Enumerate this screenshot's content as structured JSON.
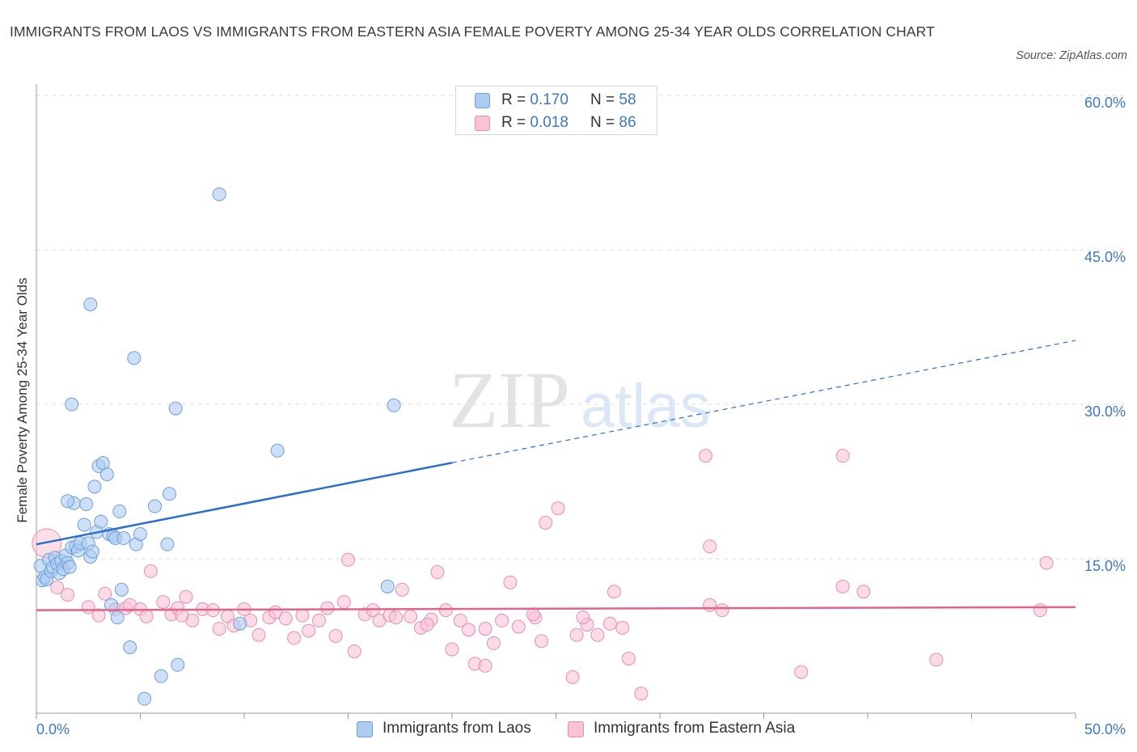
{
  "title": "IMMIGRANTS FROM LAOS VS IMMIGRANTS FROM EASTERN ASIA FEMALE POVERTY AMONG 25-34 YEAR OLDS CORRELATION CHART",
  "source": "Source: ZipAtlas.com",
  "watermark": {
    "zip": "ZIP",
    "atlas": "atlas"
  },
  "legend_top": {
    "rows": [
      {
        "r_label": "R = ",
        "r_value": "0.170",
        "n_label": "N = ",
        "n_value": "58",
        "color": "#aecbf2"
      },
      {
        "r_label": "R = ",
        "r_value": "0.018",
        "n_label": "N = ",
        "n_value": "86",
        "color": "#f9c3d3"
      }
    ]
  },
  "colors": {
    "laos_fill": "#aecbf2",
    "laos_stroke": "#6f9fd8",
    "laos_line": "#2a6fcf",
    "asia_fill": "#f9c3d3",
    "asia_stroke": "#ea8fab",
    "asia_line": "#e2648c",
    "tick_label": "#3b78c8",
    "grid": "#dcdcdc"
  },
  "chart_data": {
    "type": "scatter",
    "title": "IMMIGRANTS FROM LAOS VS IMMIGRANTS FROM EASTERN ASIA FEMALE POVERTY AMONG 25-34 YEAR OLDS CORRELATION CHART",
    "xlabel": "",
    "ylabel": "Female Poverty Among 25-34 Year Olds",
    "xlim": [
      0,
      50
    ],
    "ylim": [
      0,
      60
    ],
    "x_tick_labels": [
      "0.0%",
      "50.0%"
    ],
    "y_ticks": [
      15,
      30,
      45,
      60
    ],
    "y_tick_labels": [
      "15.0%",
      "30.0%",
      "45.0%",
      "60.0%"
    ],
    "grid": true,
    "legend_position": "bottom",
    "series": [
      {
        "name": "Immigrants from Laos",
        "trend": {
          "x0": 0,
          "y0": 16.4,
          "x_solid_end": 20.0,
          "x1": 50,
          "y1": 36.2
        },
        "points": [
          [
            0.2,
            14.3
          ],
          [
            0.3,
            12.9
          ],
          [
            0.4,
            13.2
          ],
          [
            0.5,
            13.0
          ],
          [
            0.6,
            14.9
          ],
          [
            0.7,
            13.8
          ],
          [
            0.8,
            14.2
          ],
          [
            0.9,
            15.1
          ],
          [
            1.0,
            14.5
          ],
          [
            1.1,
            13.6
          ],
          [
            1.2,
            14.8
          ],
          [
            1.3,
            14.0
          ],
          [
            1.4,
            15.3
          ],
          [
            1.5,
            14.6
          ],
          [
            1.6,
            14.2
          ],
          [
            1.7,
            16.1
          ],
          [
            1.8,
            20.4
          ],
          [
            1.9,
            16.2
          ],
          [
            2.0,
            15.8
          ],
          [
            2.1,
            16.5
          ],
          [
            2.3,
            18.3
          ],
          [
            2.4,
            20.3
          ],
          [
            2.5,
            16.5
          ],
          [
            2.6,
            15.2
          ],
          [
            2.7,
            15.7
          ],
          [
            2.8,
            22.0
          ],
          [
            2.9,
            17.6
          ],
          [
            3.0,
            24.0
          ],
          [
            3.1,
            18.6
          ],
          [
            3.2,
            24.3
          ],
          [
            3.4,
            23.2
          ],
          [
            3.5,
            17.4
          ],
          [
            3.6,
            10.5
          ],
          [
            3.7,
            17.2
          ],
          [
            3.8,
            17.0
          ],
          [
            3.9,
            9.3
          ],
          [
            4.0,
            19.6
          ],
          [
            4.1,
            12.0
          ],
          [
            4.2,
            17.0
          ],
          [
            4.5,
            6.4
          ],
          [
            4.8,
            16.4
          ],
          [
            5.0,
            17.4
          ],
          [
            5.2,
            1.4
          ],
          [
            5.7,
            20.1
          ],
          [
            6.0,
            3.6
          ],
          [
            6.4,
            21.3
          ],
          [
            6.8,
            4.7
          ],
          [
            1.5,
            20.6
          ],
          [
            2.6,
            39.7
          ],
          [
            4.7,
            34.5
          ],
          [
            1.7,
            30.0
          ],
          [
            6.7,
            29.6
          ],
          [
            8.8,
            50.4
          ],
          [
            11.6,
            25.5
          ],
          [
            17.2,
            29.9
          ],
          [
            6.3,
            16.4
          ],
          [
            16.9,
            12.3
          ],
          [
            9.8,
            8.7
          ]
        ]
      },
      {
        "name": "Immigrants from Eastern Asia",
        "trend": {
          "x0": 0,
          "y0": 10.0,
          "x1": 50,
          "y1": 10.3
        },
        "points": [
          [
            0.5,
            16.5
          ],
          [
            1.0,
            12.2
          ],
          [
            1.5,
            11.5
          ],
          [
            2.5,
            10.3
          ],
          [
            3.0,
            9.5
          ],
          [
            3.3,
            11.6
          ],
          [
            3.8,
            10.1
          ],
          [
            4.3,
            10.2
          ],
          [
            4.5,
            10.5
          ],
          [
            5.0,
            10.1
          ],
          [
            5.3,
            9.4
          ],
          [
            5.5,
            13.8
          ],
          [
            6.1,
            10.8
          ],
          [
            6.5,
            9.6
          ],
          [
            6.8,
            10.2
          ],
          [
            7.2,
            11.3
          ],
          [
            7.5,
            9.0
          ],
          [
            8.0,
            10.1
          ],
          [
            8.5,
            10.0
          ],
          [
            8.8,
            8.2
          ],
          [
            9.2,
            9.4
          ],
          [
            9.5,
            8.5
          ],
          [
            10.0,
            10.1
          ],
          [
            10.3,
            9.0
          ],
          [
            10.7,
            7.6
          ],
          [
            11.2,
            9.3
          ],
          [
            11.5,
            9.8
          ],
          [
            12.0,
            9.2
          ],
          [
            12.4,
            7.3
          ],
          [
            12.8,
            9.5
          ],
          [
            13.1,
            8.0
          ],
          [
            13.6,
            9.0
          ],
          [
            14.0,
            10.2
          ],
          [
            14.4,
            7.5
          ],
          [
            14.8,
            10.8
          ],
          [
            15.0,
            14.9
          ],
          [
            15.3,
            6.0
          ],
          [
            15.8,
            9.6
          ],
          [
            16.2,
            10.0
          ],
          [
            16.5,
            9.0
          ],
          [
            17.0,
            9.5
          ],
          [
            17.3,
            9.3
          ],
          [
            17.6,
            12.0
          ],
          [
            18.0,
            9.4
          ],
          [
            18.5,
            8.3
          ],
          [
            19.0,
            9.1
          ],
          [
            19.3,
            13.7
          ],
          [
            19.7,
            10.0
          ],
          [
            20.0,
            6.2
          ],
          [
            20.4,
            9.0
          ],
          [
            20.8,
            8.1
          ],
          [
            21.1,
            4.8
          ],
          [
            21.6,
            8.2
          ],
          [
            22.0,
            6.8
          ],
          [
            22.4,
            9.0
          ],
          [
            22.8,
            12.7
          ],
          [
            23.2,
            8.4
          ],
          [
            24.0,
            9.3
          ],
          [
            24.3,
            7.0
          ],
          [
            24.5,
            18.5
          ],
          [
            25.1,
            19.9
          ],
          [
            26.0,
            7.6
          ],
          [
            26.5,
            8.6
          ],
          [
            27.0,
            7.6
          ],
          [
            27.6,
            8.7
          ],
          [
            27.8,
            11.8
          ],
          [
            28.2,
            8.3
          ],
          [
            29.1,
            1.9
          ],
          [
            32.4,
            10.5
          ],
          [
            33.0,
            10.0
          ],
          [
            32.4,
            16.2
          ],
          [
            32.2,
            25.0
          ],
          [
            36.8,
            4.0
          ],
          [
            38.8,
            25.0
          ],
          [
            38.8,
            12.3
          ],
          [
            39.8,
            11.8
          ],
          [
            43.3,
            5.2
          ],
          [
            48.3,
            10.0
          ],
          [
            48.6,
            14.6
          ],
          [
            26.3,
            9.3
          ],
          [
            25.8,
            3.5
          ],
          [
            21.6,
            4.6
          ],
          [
            23.9,
            9.6
          ],
          [
            28.5,
            5.3
          ],
          [
            7.0,
            9.5
          ],
          [
            18.8,
            8.6
          ]
        ]
      }
    ]
  }
}
